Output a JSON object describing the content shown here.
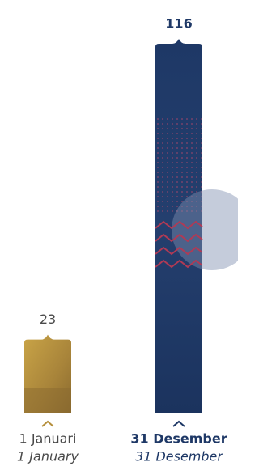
{
  "chart_data": {
    "type": "bar",
    "categories": [
      "1 Januari",
      "31 Desember"
    ],
    "category_translations": [
      "1 January",
      "31 Desember"
    ],
    "values": [
      23,
      116
    ],
    "colors": [
      "#b58f3c",
      "#1e3866"
    ],
    "label_colors": [
      "#4a4a4a",
      "#1e3866"
    ]
  }
}
